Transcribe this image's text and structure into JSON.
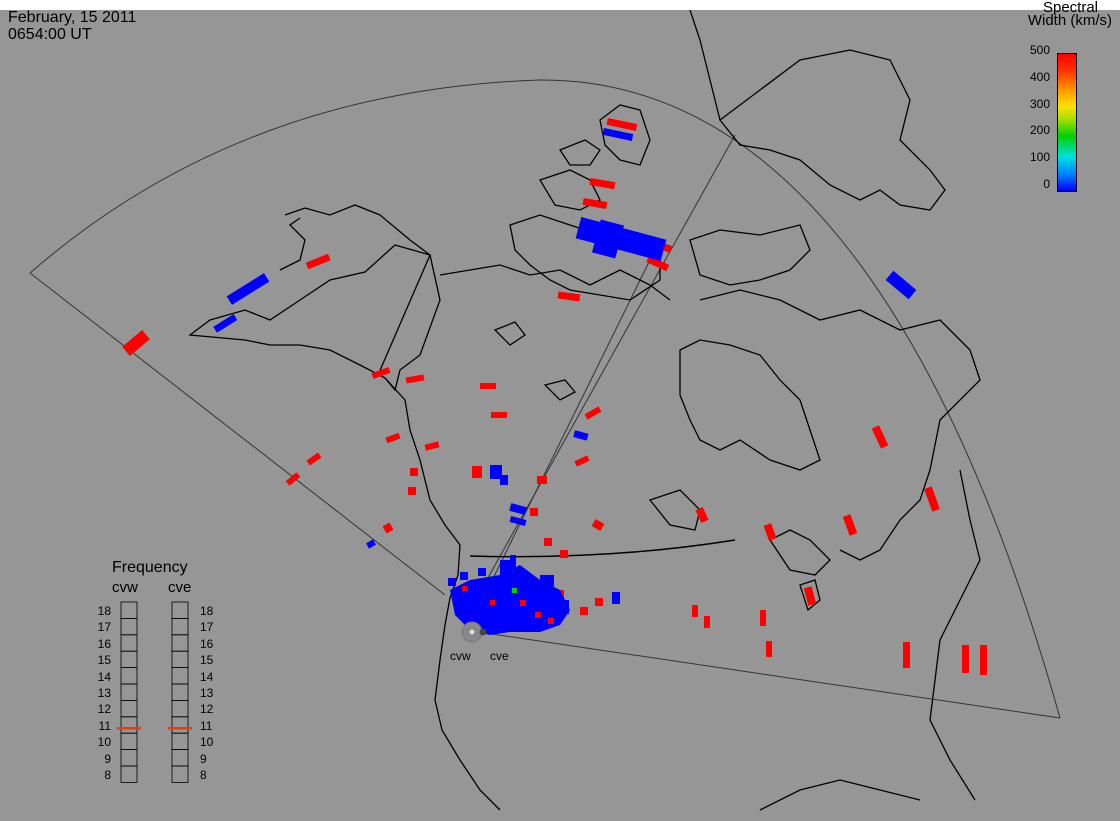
{
  "header": {
    "date": "February, 15 2011",
    "time": "0654:00 UT"
  },
  "colorbar": {
    "title_line1": "Spectral",
    "title_line2": "Width (km/s)",
    "ticks": [
      "500",
      "400",
      "300",
      "200",
      "100",
      "0"
    ]
  },
  "frequency_panel": {
    "title": "Frequency",
    "radars": [
      "cvw",
      "cve"
    ],
    "ticks": [
      "18",
      "17",
      "16",
      "15",
      "14",
      "13",
      "12",
      "11",
      "10",
      "9",
      "8"
    ],
    "cvw_value_mhz": 10.8,
    "cve_value_mhz": 10.8,
    "indicator_color": "#e04010"
  },
  "sites": [
    "cvw",
    "cve"
  ],
  "colors": {
    "background": "#969696",
    "high_width": "#ff0000",
    "low_width": "#0000ff",
    "coast": "#000000"
  }
}
